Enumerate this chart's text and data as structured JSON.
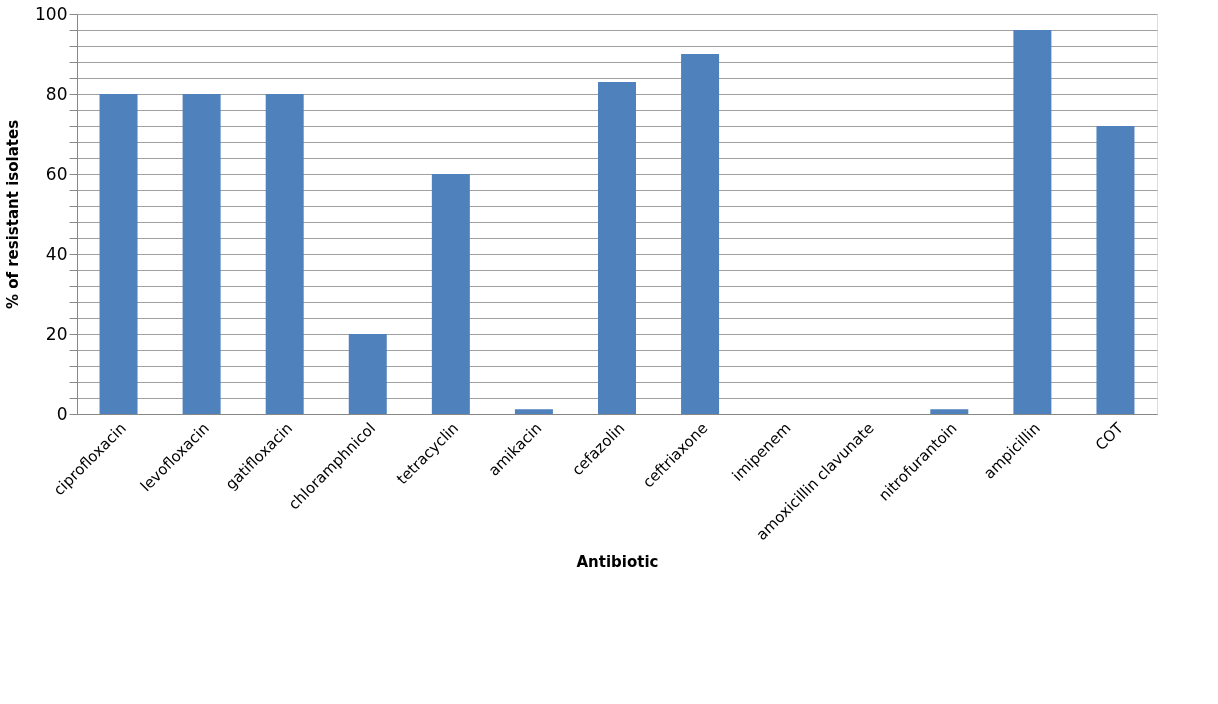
{
  "chart_data": {
    "type": "bar",
    "xlabel": "Antibiotic",
    "ylabel": "% of resistant isolates",
    "categories": [
      "ciprofloxacin",
      "levofloxacin",
      "gatifloxacin",
      "chloramphnicol",
      "tetracyclin",
      "amikacin",
      "cefazolin",
      "ceftriaxone",
      "imipenem",
      "amoxicillin clavunate",
      "nitrofurantoin",
      "ampicillin",
      "COT"
    ],
    "values": [
      80,
      80,
      80,
      20,
      60,
      1.2,
      83,
      90,
      0,
      0,
      1.2,
      96,
      72
    ],
    "color": "#4f81bd",
    "ylim": [
      0,
      100
    ],
    "yticks": [
      0,
      {
        "value": 4,
        "label": null
      },
      {
        "value": 8,
        "label": null
      },
      {
        "value": 12,
        "label": null
      },
      {
        "value": 16,
        "label": null
      },
      20,
      {
        "value": 24,
        "label": null
      },
      {
        "value": 28,
        "label": null
      },
      {
        "value": 32,
        "label": null
      },
      {
        "value": 36,
        "label": null
      },
      40,
      {
        "value": 44,
        "label": null
      },
      {
        "value": 48,
        "label": null
      },
      {
        "value": 52,
        "label": null
      },
      {
        "value": 56,
        "label": null
      },
      60,
      {
        "value": 64,
        "label": null
      },
      {
        "value": 68,
        "label": null
      },
      {
        "value": 72,
        "label": null
      },
      {
        "value": 76,
        "label": null
      },
      80,
      {
        "value": 84,
        "label": null
      },
      {
        "value": 88,
        "label": null
      },
      {
        "value": 92,
        "label": null
      },
      {
        "value": 96,
        "label": null
      },
      100
    ],
    "grid": "y"
  }
}
